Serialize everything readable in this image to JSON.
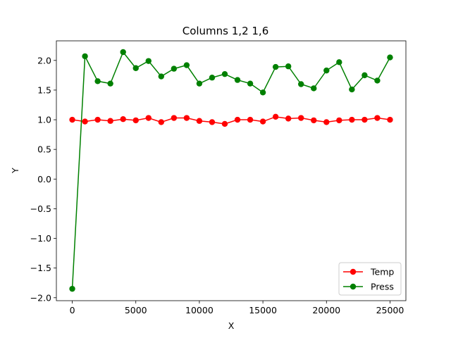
{
  "chart_data": {
    "type": "line",
    "title": "Columns 1,2 1,6",
    "xlabel": "X",
    "ylabel": "Y",
    "xlim": [
      -1250,
      26250
    ],
    "ylim": [
      -2.05,
      2.33
    ],
    "xticks": [
      0,
      5000,
      10000,
      15000,
      20000,
      25000
    ],
    "yticks": [
      -2.0,
      -1.5,
      -1.0,
      -0.5,
      0.0,
      0.5,
      1.0,
      1.5,
      2.0
    ],
    "xtick_labels": [
      "0",
      "5000",
      "10000",
      "15000",
      "20000",
      "25000"
    ],
    "ytick_labels": [
      "−2.0",
      "−1.5",
      "−1.0",
      "−0.5",
      "0.0",
      "0.5",
      "1.0",
      "1.5",
      "2.0"
    ],
    "grid": false,
    "legend_position": "lower-right",
    "x": [
      0,
      1000,
      2000,
      3000,
      4000,
      5000,
      6000,
      7000,
      8000,
      9000,
      10000,
      11000,
      12000,
      13000,
      14000,
      15000,
      16000,
      17000,
      18000,
      19000,
      20000,
      21000,
      22000,
      23000,
      24000,
      25000
    ],
    "series": [
      {
        "name": "Temp",
        "color": "#ff0000",
        "marker": "circle",
        "values": [
          1.0,
          0.97,
          1.0,
          0.98,
          1.01,
          0.99,
          1.03,
          0.96,
          1.03,
          1.03,
          0.98,
          0.96,
          0.93,
          1.0,
          1.0,
          0.97,
          1.05,
          1.02,
          1.03,
          0.99,
          0.96,
          0.99,
          1.0,
          1.0,
          1.03,
          1.0
        ]
      },
      {
        "name": "Press",
        "color": "#008000",
        "marker": "circle",
        "values": [
          -1.85,
          2.07,
          1.65,
          1.61,
          2.14,
          1.87,
          1.99,
          1.73,
          1.86,
          1.92,
          1.61,
          1.71,
          1.77,
          1.67,
          1.61,
          1.46,
          1.89,
          1.9,
          1.6,
          1.53,
          1.83,
          1.97,
          1.51,
          1.75,
          1.66,
          2.05
        ]
      }
    ]
  }
}
